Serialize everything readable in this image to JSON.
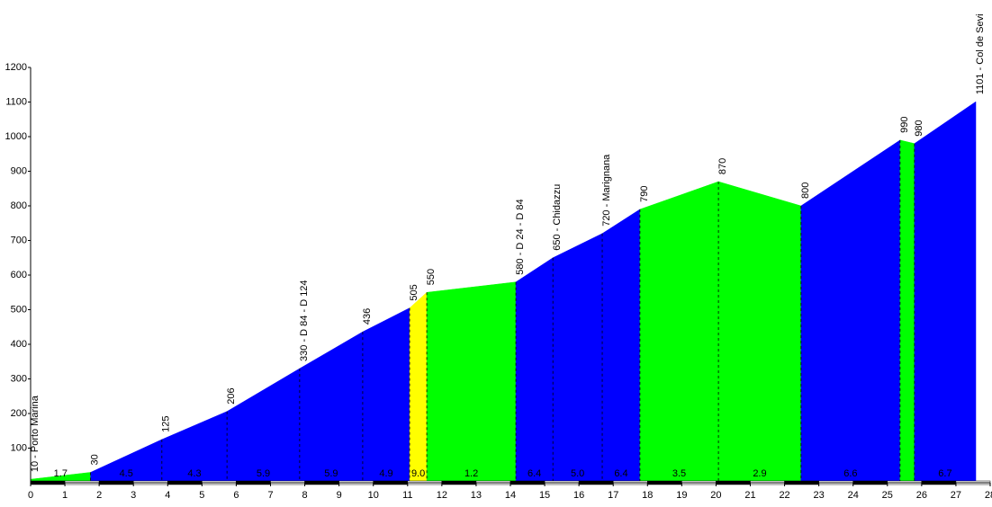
{
  "chart_data": {
    "type": "area",
    "xlim": [
      0,
      28
    ],
    "ylim": [
      0,
      1200
    ],
    "xticks": [
      0,
      1,
      2,
      3,
      4,
      5,
      6,
      7,
      8,
      9,
      10,
      11,
      12,
      13,
      14,
      15,
      16,
      17,
      18,
      19,
      20,
      21,
      22,
      23,
      24,
      25,
      26,
      27,
      28
    ],
    "yticks": [
      100,
      200,
      300,
      400,
      500,
      600,
      700,
      800,
      900,
      1000,
      1100,
      1200
    ],
    "x": [
      0,
      1.75,
      3.83,
      5.73,
      7.85,
      9.69,
      11.06,
      11.56,
      14.16,
      15.24,
      16.68,
      17.78,
      20.07,
      22.48,
      25.37,
      25.79,
      27.58
    ],
    "values": [
      10,
      30,
      125,
      206,
      330,
      436,
      505,
      550,
      580,
      650,
      720,
      790,
      870,
      800,
      990,
      980,
      1101
    ],
    "point_labels": [
      "10 - Porto Marina",
      "30",
      "125",
      "206",
      "330 - D 84 - D 124",
      "436",
      "505",
      "550",
      "580 - D 24 - D 84",
      "650 - Chidazzu",
      "720 - Marignana",
      "790",
      "870",
      "800",
      "990",
      "980",
      "1101 - Col de Sevi"
    ],
    "segment_colors": [
      "#00ff00",
      "#0000ff",
      "#0000ff",
      "#0000ff",
      "#0000ff",
      "#0000ff",
      "#ffff00",
      "#00ff00",
      "#0000ff",
      "#0000ff",
      "#0000ff",
      "#00ff00",
      "#00ff00",
      "#0000ff",
      "#00ff00",
      "#0000ff"
    ],
    "grade_labels": [
      "1.7",
      "4.5",
      "4.3",
      "5.9",
      "5.9",
      "4.9",
      "9.0",
      "1.2",
      "6.4",
      "5.0",
      "6.4",
      "3.5",
      "2.9",
      "6.6",
      null,
      "6.7"
    ]
  }
}
